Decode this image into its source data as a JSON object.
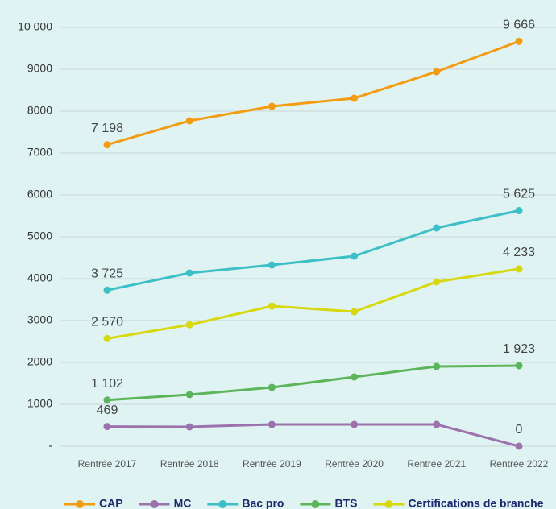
{
  "chart_data": {
    "type": "line",
    "categories": [
      "Rentrée 2017",
      "Rentrée 2018",
      "Rentrée 2019",
      "Rentrée 2020",
      "Rentrée 2021",
      "Rentrée 2022"
    ],
    "series": [
      {
        "name": "CAP",
        "color": "#f39c12",
        "values": [
          7198,
          7770,
          8115,
          8308,
          8942,
          9666
        ],
        "value_labels": [
          "7 198",
          null,
          null,
          null,
          null,
          "9 666"
        ]
      },
      {
        "name": "MC",
        "color": "#9c72ac",
        "values": [
          469,
          462,
          519,
          519,
          519,
          0
        ],
        "value_labels": [
          "469",
          null,
          null,
          null,
          null,
          "0"
        ]
      },
      {
        "name": "Bac pro",
        "color": "#3cbfc6",
        "values": [
          3725,
          4135,
          4327,
          4538,
          5212,
          5625
        ],
        "value_labels": [
          "3 725",
          null,
          null,
          null,
          null,
          "5 625"
        ]
      },
      {
        "name": "BTS",
        "color": "#5cb55a",
        "values": [
          1102,
          1231,
          1404,
          1654,
          1904,
          1923
        ],
        "value_labels": [
          "1 102",
          null,
          null,
          null,
          null,
          "1 923"
        ]
      },
      {
        "name": "Certifications de branche",
        "color": "#d8d80e",
        "values": [
          2570,
          2900,
          3346,
          3212,
          3923,
          4233
        ],
        "value_labels": [
          "2 570",
          null,
          null,
          null,
          null,
          "4 233"
        ]
      }
    ],
    "ylim": [
      0,
      10000
    ],
    "yticks": [
      {
        "value": 0,
        "label": "-"
      },
      1000,
      2000,
      3000,
      4000,
      5000,
      6000,
      7000,
      8000,
      9000,
      {
        "value": 10000,
        "label": "10 000"
      }
    ],
    "grid": true
  }
}
